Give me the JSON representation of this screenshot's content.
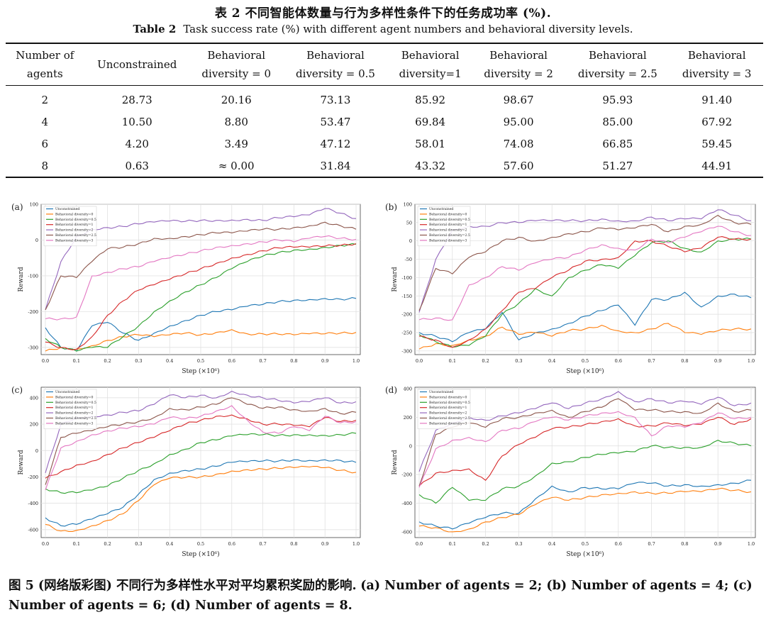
{
  "table": {
    "title_cn": "表 2   不同智能体数量与行为多样性条件下的任务成功率 (%).",
    "title_en_label": "Table 2",
    "title_en_text": "Task success rate (%) with different agent numbers and behavioral diversity levels.",
    "headers": [
      [
        "Number of",
        "agents"
      ],
      [
        "Unconstrained",
        ""
      ],
      [
        "Behavioral",
        "diversity = 0"
      ],
      [
        "Behavioral",
        "diversity = 0.5"
      ],
      [
        "Behavioral",
        "diversity=1"
      ],
      [
        "Behavioral",
        "diversity = 2"
      ],
      [
        "Behavioral",
        "diversity = 2.5"
      ],
      [
        "Behavioral",
        "diversity = 3"
      ]
    ],
    "rows": [
      [
        "2",
        "28.73",
        "20.16",
        "73.13",
        "85.92",
        "98.67",
        "95.93",
        "91.40"
      ],
      [
        "4",
        "10.50",
        "8.80",
        "53.47",
        "69.84",
        "95.00",
        "85.00",
        "67.92"
      ],
      [
        "6",
        "4.20",
        "3.49",
        "47.12",
        "58.01",
        "74.08",
        "66.85",
        "59.45"
      ],
      [
        "8",
        "0.63",
        "≈ 0.00",
        "31.84",
        "43.32",
        "57.60",
        "51.27",
        "44.91"
      ]
    ]
  },
  "figure": {
    "caption_cn": "图 5   (网络版彩图) 不同行为多样性水平对平均累积奖励的影响.",
    "caption_en": "(a) Number of agents = 2; (b) Number of agents = 4; (c) Number of agents = 6; (d) Number of agents = 8."
  },
  "chart_data": [
    {
      "type": "line",
      "panel": "(a)",
      "xlabel": "Step (×10⁶)",
      "ylabel": "Reward",
      "xlim": [
        0,
        1.0
      ],
      "ylim": [
        -320,
        100
      ],
      "yticks": [
        100,
        0,
        -100,
        -200,
        -300
      ],
      "xticks": [
        "0.0",
        "0.1",
        "0.2",
        "0.3",
        "0.4",
        "0.5",
        "0.6",
        "0.7",
        "0.8",
        "0.9",
        "1.0"
      ],
      "x": [
        0,
        0.05,
        0.1,
        0.15,
        0.2,
        0.25,
        0.3,
        0.35,
        0.4,
        0.45,
        0.5,
        0.55,
        0.6,
        0.65,
        0.7,
        0.75,
        0.8,
        0.85,
        0.9,
        0.95,
        1.0
      ],
      "series": [
        {
          "name": "Unconstrained",
          "color": "#1f77b4",
          "values": [
            -245,
            -300,
            -310,
            -240,
            -230,
            -260,
            -280,
            -260,
            -240,
            -225,
            -210,
            -200,
            -195,
            -185,
            -180,
            -172,
            -168,
            -166,
            -163,
            -165,
            -163
          ]
        },
        {
          "name": "Behavioral diversity=0",
          "color": "#ff7f0e",
          "values": [
            -310,
            -300,
            -305,
            -295,
            -280,
            -270,
            -265,
            -270,
            -265,
            -260,
            -265,
            -258,
            -250,
            -262,
            -262,
            -263,
            -265,
            -262,
            -262,
            -260,
            -258
          ]
        },
        {
          "name": "Behavioral diversity=0.5",
          "color": "#2ca02c",
          "values": [
            -275,
            -300,
            -310,
            -300,
            -300,
            -270,
            -240,
            -200,
            -170,
            -145,
            -125,
            -105,
            -80,
            -60,
            -45,
            -35,
            -28,
            -25,
            -20,
            -15,
            -12
          ]
        },
        {
          "name": "Behavioral diversity=1",
          "color": "#d62728",
          "values": [
            -285,
            -300,
            -305,
            -270,
            -210,
            -170,
            -140,
            -125,
            -110,
            -95,
            -80,
            -65,
            -50,
            -40,
            -30,
            -22,
            -20,
            -20,
            -17,
            -15,
            -10
          ]
        },
        {
          "name": "Behavioral diversity=2",
          "color": "#9467bd",
          "values": [
            -195,
            -60,
            10,
            30,
            35,
            38,
            45,
            50,
            53,
            52,
            55,
            55,
            56,
            58,
            55,
            62,
            65,
            70,
            88,
            75,
            60
          ]
        },
        {
          "name": "Behavioral diversity=2.5",
          "color": "#8c564b",
          "values": [
            -195,
            -100,
            -105,
            -60,
            -25,
            -20,
            -10,
            5,
            5,
            10,
            15,
            20,
            20,
            25,
            30,
            30,
            35,
            40,
            50,
            40,
            30
          ]
        },
        {
          "name": "Behavioral diversity=3",
          "color": "#e377c2",
          "values": [
            -220,
            -220,
            -215,
            -100,
            -90,
            -80,
            -75,
            -60,
            -50,
            -40,
            -30,
            -20,
            -15,
            -10,
            -5,
            0,
            -5,
            5,
            10,
            5,
            2
          ]
        }
      ]
    },
    {
      "type": "line",
      "panel": "(b)",
      "xlabel": "Step (×10⁶)",
      "ylabel": "Reward",
      "xlim": [
        0,
        1.0
      ],
      "ylim": [
        -310,
        100
      ],
      "yticks": [
        100,
        50,
        0,
        -50,
        -100,
        -150,
        -200,
        -250,
        -300
      ],
      "xticks": [
        "0.0",
        "0.1",
        "0.2",
        "0.3",
        "0.4",
        "0.5",
        "0.6",
        "0.7",
        "0.8",
        "0.9",
        "1.0"
      ],
      "x": [
        0,
        0.05,
        0.1,
        0.15,
        0.2,
        0.25,
        0.3,
        0.35,
        0.4,
        0.45,
        0.5,
        0.55,
        0.6,
        0.65,
        0.7,
        0.75,
        0.8,
        0.85,
        0.9,
        0.95,
        1.0
      ],
      "series": [
        {
          "name": "Unconstrained",
          "color": "#1f77b4",
          "values": [
            -250,
            -260,
            -275,
            -250,
            -240,
            -195,
            -270,
            -250,
            -240,
            -225,
            -205,
            -190,
            -175,
            -230,
            -160,
            -160,
            -140,
            -180,
            -150,
            -145,
            -155
          ]
        },
        {
          "name": "Behavioral diversity=0",
          "color": "#ff7f0e",
          "values": [
            -295,
            -280,
            -285,
            -270,
            -260,
            -235,
            -255,
            -250,
            -260,
            -245,
            -240,
            -230,
            -245,
            -250,
            -240,
            -225,
            -250,
            -255,
            -245,
            -240,
            -240
          ]
        },
        {
          "name": "Behavioral diversity=0.5",
          "color": "#2ca02c",
          "values": [
            -255,
            -275,
            -290,
            -285,
            -260,
            -200,
            -170,
            -130,
            -150,
            -100,
            -80,
            -65,
            -75,
            -40,
            -5,
            0,
            -20,
            -30,
            0,
            5,
            5
          ]
        },
        {
          "name": "Behavioral diversity=1",
          "color": "#d62728",
          "values": [
            -260,
            -270,
            -290,
            -270,
            -240,
            -190,
            -140,
            -130,
            -100,
            -80,
            -55,
            -50,
            -45,
            0,
            0,
            -15,
            -30,
            -20,
            10,
            5,
            5
          ]
        },
        {
          "name": "Behavioral diversity=2",
          "color": "#9467bd",
          "values": [
            -195,
            -50,
            30,
            40,
            40,
            50,
            50,
            55,
            55,
            55,
            55,
            60,
            55,
            55,
            65,
            55,
            60,
            60,
            85,
            70,
            55
          ]
        },
        {
          "name": "Behavioral diversity=2.5",
          "color": "#8c564b",
          "values": [
            -190,
            -75,
            -90,
            -45,
            -30,
            0,
            10,
            0,
            10,
            20,
            25,
            35,
            30,
            35,
            45,
            25,
            40,
            45,
            70,
            50,
            45
          ]
        },
        {
          "name": "Behavioral diversity=3",
          "color": "#e377c2",
          "values": [
            -215,
            -210,
            -215,
            -120,
            -100,
            -70,
            -80,
            -60,
            -50,
            -45,
            -25,
            -10,
            -20,
            -25,
            5,
            -5,
            10,
            25,
            40,
            25,
            15
          ]
        }
      ]
    },
    {
      "type": "line",
      "panel": "(c)",
      "xlabel": "Step (×10⁶)",
      "ylabel": "Reward",
      "xlim": [
        0,
        1.0
      ],
      "ylim": [
        -660,
        480
      ],
      "yticks": [
        400,
        200,
        0,
        -200,
        -400,
        -600
      ],
      "xticks": [
        "0.0",
        "0.1",
        "0.2",
        "0.3",
        "0.4",
        "0.5",
        "0.6",
        "0.7",
        "0.8",
        "0.9",
        "1.0"
      ],
      "x": [
        0,
        0.05,
        0.1,
        0.15,
        0.2,
        0.25,
        0.3,
        0.35,
        0.4,
        0.45,
        0.5,
        0.55,
        0.6,
        0.65,
        0.7,
        0.75,
        0.8,
        0.85,
        0.9,
        0.95,
        1.0
      ],
      "series": [
        {
          "name": "Unconstrained",
          "color": "#1f77b4",
          "values": [
            -510,
            -570,
            -560,
            -520,
            -480,
            -430,
            -330,
            -220,
            -170,
            -150,
            -140,
            -120,
            -90,
            -85,
            -80,
            -80,
            -70,
            -75,
            -70,
            -75,
            -90
          ]
        },
        {
          "name": "Behavioral diversity=0",
          "color": "#ff7f0e",
          "values": [
            -560,
            -610,
            -605,
            -570,
            -530,
            -480,
            -380,
            -260,
            -210,
            -205,
            -200,
            -180,
            -155,
            -145,
            -140,
            -135,
            -130,
            -125,
            -130,
            -150,
            -165
          ]
        },
        {
          "name": "Behavioral diversity=0.5",
          "color": "#2ca02c",
          "values": [
            -290,
            -320,
            -320,
            -300,
            -270,
            -210,
            -150,
            -100,
            -30,
            10,
            60,
            80,
            110,
            120,
            120,
            115,
            120,
            120,
            115,
            120,
            130
          ]
        },
        {
          "name": "Behavioral diversity=1",
          "color": "#d62728",
          "values": [
            -210,
            -160,
            -110,
            -80,
            -30,
            20,
            60,
            100,
            150,
            200,
            230,
            260,
            270,
            240,
            200,
            200,
            190,
            180,
            250,
            220,
            230
          ]
        },
        {
          "name": "Behavioral diversity=2",
          "color": "#9467bd",
          "values": [
            -170,
            200,
            250,
            260,
            270,
            290,
            300,
            350,
            420,
            400,
            420,
            400,
            450,
            420,
            400,
            380,
            360,
            370,
            400,
            360,
            370
          ]
        },
        {
          "name": "Behavioral diversity=2.5",
          "color": "#8c564b",
          "values": [
            -260,
            100,
            130,
            150,
            180,
            200,
            220,
            250,
            320,
            310,
            330,
            350,
            400,
            350,
            320,
            330,
            310,
            300,
            320,
            280,
            290
          ]
        },
        {
          "name": "Behavioral diversity=3",
          "color": "#e377c2",
          "values": [
            -300,
            20,
            70,
            120,
            150,
            170,
            180,
            200,
            250,
            240,
            260,
            300,
            340,
            230,
            140,
            130,
            180,
            150,
            260,
            210,
            220
          ]
        }
      ]
    },
    {
      "type": "line",
      "panel": "(d)",
      "xlabel": "Step (×10⁶)",
      "ylabel": "Reward",
      "xlim": [
        0,
        1.0
      ],
      "ylim": [
        -640,
        410
      ],
      "yticks": [
        400,
        200,
        0,
        -200,
        -400,
        -600
      ],
      "xticks": [
        "0.0",
        "0.1",
        "0.2",
        "0.3",
        "0.4",
        "0.5",
        "0.6",
        "0.7",
        "0.8",
        "0.9",
        "1.0"
      ],
      "x": [
        0,
        0.05,
        0.1,
        0.15,
        0.2,
        0.25,
        0.3,
        0.35,
        0.4,
        0.45,
        0.5,
        0.55,
        0.6,
        0.65,
        0.7,
        0.75,
        0.8,
        0.85,
        0.9,
        0.95,
        1.0
      ],
      "series": [
        {
          "name": "Unconstrained",
          "color": "#1f77b4",
          "values": [
            -530,
            -560,
            -580,
            -540,
            -500,
            -470,
            -470,
            -370,
            -280,
            -320,
            -290,
            -300,
            -300,
            -260,
            -260,
            -280,
            -270,
            -280,
            -270,
            -260,
            -240
          ]
        },
        {
          "name": "Behavioral diversity=0",
          "color": "#ff7f0e",
          "values": [
            -560,
            -570,
            -600,
            -580,
            -530,
            -500,
            -480,
            -410,
            -360,
            -380,
            -360,
            -340,
            -330,
            -320,
            -330,
            -330,
            -320,
            -320,
            -300,
            -310,
            -320
          ]
        },
        {
          "name": "Behavioral diversity=0.5",
          "color": "#2ca02c",
          "values": [
            -340,
            -400,
            -290,
            -380,
            -380,
            -300,
            -280,
            -210,
            -120,
            -110,
            -80,
            -60,
            -50,
            -40,
            0,
            -10,
            -10,
            -10,
            40,
            20,
            0
          ]
        },
        {
          "name": "Behavioral diversity=1",
          "color": "#d62728",
          "values": [
            -280,
            -190,
            -170,
            -160,
            -240,
            -70,
            10,
            60,
            120,
            130,
            150,
            170,
            190,
            140,
            140,
            160,
            140,
            150,
            200,
            150,
            190
          ]
        },
        {
          "name": "Behavioral diversity=2",
          "color": "#9467bd",
          "values": [
            -180,
            110,
            160,
            200,
            180,
            210,
            230,
            260,
            300,
            260,
            300,
            330,
            380,
            310,
            330,
            300,
            310,
            290,
            340,
            280,
            300
          ]
        },
        {
          "name": "Behavioral diversity=2.5",
          "color": "#8c564b",
          "values": [
            -280,
            80,
            130,
            160,
            130,
            190,
            200,
            230,
            250,
            200,
            240,
            270,
            330,
            250,
            250,
            240,
            240,
            230,
            300,
            240,
            250
          ]
        },
        {
          "name": "Behavioral diversity=3",
          "color": "#e377c2",
          "values": [
            -290,
            -20,
            40,
            60,
            30,
            110,
            120,
            170,
            200,
            180,
            210,
            230,
            240,
            200,
            70,
            140,
            130,
            160,
            230,
            190,
            200
          ]
        }
      ]
    }
  ]
}
